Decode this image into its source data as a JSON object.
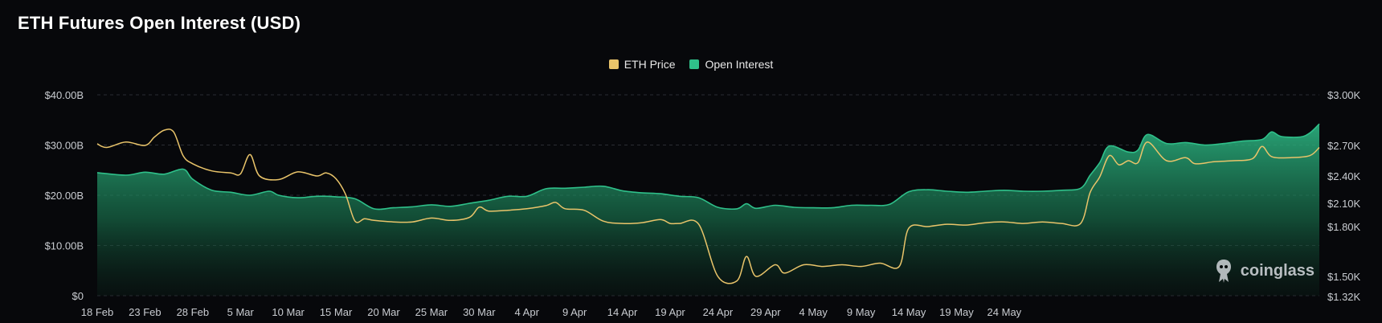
{
  "title": "ETH Futures Open Interest (USD)",
  "legend": {
    "eth_price": "ETH Price",
    "open_interest": "Open Interest"
  },
  "watermark": "coinglass",
  "colors": {
    "background": "#07080b",
    "eth_price": "#e9c46a",
    "open_interest": "#2fc08a",
    "grid": "#2a2d33"
  },
  "chart_data": {
    "type": "area",
    "title": "ETH Futures Open Interest (USD)",
    "x_tick_labels": [
      "18 Feb",
      "23 Feb",
      "28 Feb",
      "5 Mar",
      "10 Mar",
      "15 Mar",
      "20 Mar",
      "25 Mar",
      "30 Mar",
      "4 Apr",
      "9 Apr",
      "14 Apr",
      "19 Apr",
      "24 Apr",
      "29 Apr",
      "4 May",
      "9 May",
      "14 May",
      "19 May",
      "24 May"
    ],
    "left_axis": {
      "ticks": [
        "$0",
        "$10.00B",
        "$20.00B",
        "$30.00B",
        "$40.00B"
      ],
      "tick_values": [
        0,
        10,
        20,
        30,
        40
      ],
      "range": [
        0,
        40
      ]
    },
    "right_axis": {
      "ticks": [
        "$1.32K",
        "$1.50K",
        "$1.80K",
        "$2.10K",
        "$2.40K",
        "$2.70K",
        "$3.00K"
      ],
      "tick_values": [
        1.32,
        1.5,
        1.8,
        2.1,
        2.4,
        2.7,
        3.0
      ],
      "range": [
        1.32,
        3.0
      ]
    },
    "grid": true,
    "legend_position": "top-center",
    "series": [
      {
        "name": "Open Interest",
        "axis": "left",
        "unit": "$B",
        "points": [
          [
            0,
            24.5
          ],
          [
            3,
            24
          ],
          [
            5,
            24.6
          ],
          [
            7,
            24.2
          ],
          [
            9,
            25.2
          ],
          [
            10,
            23.2
          ],
          [
            12,
            21
          ],
          [
            14,
            20.6
          ],
          [
            16,
            20
          ],
          [
            18,
            20.8
          ],
          [
            19,
            20
          ],
          [
            21,
            19.5
          ],
          [
            23,
            19.8
          ],
          [
            25,
            19.7
          ],
          [
            27,
            19.3
          ],
          [
            29,
            17.3
          ],
          [
            31,
            17.5
          ],
          [
            33,
            17.7
          ],
          [
            35,
            18.1
          ],
          [
            37,
            17.8
          ],
          [
            39,
            18.4
          ],
          [
            41,
            19
          ],
          [
            43,
            19.8
          ],
          [
            45,
            19.8
          ],
          [
            47,
            21.3
          ],
          [
            49,
            21.4
          ],
          [
            51,
            21.6
          ],
          [
            53,
            21.8
          ],
          [
            55,
            20.9
          ],
          [
            57,
            20.5
          ],
          [
            59,
            20.3
          ],
          [
            61,
            19.8
          ],
          [
            63,
            19.5
          ],
          [
            65,
            17.6
          ],
          [
            67,
            17.3
          ],
          [
            68,
            18.3
          ],
          [
            69,
            17.4
          ],
          [
            71,
            18
          ],
          [
            73,
            17.6
          ],
          [
            75,
            17.5
          ],
          [
            77,
            17.5
          ],
          [
            79,
            18
          ],
          [
            81,
            18
          ],
          [
            83,
            18.2
          ],
          [
            85,
            20.7
          ],
          [
            87,
            21.1
          ],
          [
            89,
            20.8
          ],
          [
            91,
            20.6
          ],
          [
            93,
            20.8
          ],
          [
            95,
            21
          ],
          [
            97,
            20.8
          ],
          [
            99,
            20.8
          ],
          [
            101,
            21
          ],
          [
            103,
            21.4
          ],
          [
            104,
            24
          ],
          [
            105,
            26.5
          ],
          [
            106,
            29.8
          ],
          [
            108,
            28.6
          ],
          [
            109,
            29
          ],
          [
            110,
            32.1
          ],
          [
            112,
            30.3
          ],
          [
            114,
            30.5
          ],
          [
            116,
            30
          ],
          [
            118,
            30.3
          ],
          [
            120,
            30.8
          ],
          [
            122,
            31.1
          ],
          [
            123,
            32.6
          ],
          [
            124,
            31.7
          ],
          [
            126,
            31.6
          ],
          [
            127,
            32.4
          ],
          [
            128,
            34.2
          ]
        ]
      },
      {
        "name": "ETH Price",
        "axis": "right",
        "unit": "$K",
        "points": [
          [
            0,
            2.71
          ],
          [
            1,
            2.68
          ],
          [
            3,
            2.72
          ],
          [
            5,
            2.7
          ],
          [
            6,
            2.75
          ],
          [
            7,
            2.79
          ],
          [
            8,
            2.78
          ],
          [
            9,
            2.6
          ],
          [
            10,
            2.52
          ],
          [
            12,
            2.45
          ],
          [
            14,
            2.43
          ],
          [
            15,
            2.42
          ],
          [
            16,
            2.61
          ],
          [
            17,
            2.4
          ],
          [
            19,
            2.36
          ],
          [
            21,
            2.44
          ],
          [
            23,
            2.4
          ],
          [
            24,
            2.43
          ],
          [
            25,
            2.37
          ],
          [
            26,
            2.2
          ],
          [
            27,
            1.87
          ],
          [
            28,
            1.9
          ],
          [
            29,
            1.88
          ],
          [
            31,
            1.86
          ],
          [
            33,
            1.86
          ],
          [
            35,
            1.91
          ],
          [
            37,
            1.88
          ],
          [
            39,
            1.92
          ],
          [
            40,
            2.05
          ],
          [
            41,
            2.0
          ],
          [
            43,
            2.01
          ],
          [
            45,
            2.03
          ],
          [
            47,
            2.07
          ],
          [
            48,
            2.11
          ],
          [
            49,
            2.03
          ],
          [
            51,
            2.01
          ],
          [
            53,
            1.87
          ],
          [
            55,
            1.84
          ],
          [
            57,
            1.85
          ],
          [
            59,
            1.89
          ],
          [
            60,
            1.84
          ],
          [
            61,
            1.84
          ],
          [
            63,
            1.83
          ],
          [
            65,
            1.5
          ],
          [
            67,
            1.46
          ],
          [
            68,
            1.62
          ],
          [
            69,
            1.5
          ],
          [
            71,
            1.57
          ],
          [
            72,
            1.52
          ],
          [
            74,
            1.57
          ],
          [
            76,
            1.56
          ],
          [
            78,
            1.57
          ],
          [
            80,
            1.56
          ],
          [
            82,
            1.58
          ],
          [
            84,
            1.56
          ],
          [
            85,
            1.79
          ],
          [
            87,
            1.8
          ],
          [
            89,
            1.83
          ],
          [
            91,
            1.82
          ],
          [
            93,
            1.85
          ],
          [
            95,
            1.86
          ],
          [
            97,
            1.84
          ],
          [
            99,
            1.86
          ],
          [
            101,
            1.84
          ],
          [
            103,
            1.84
          ],
          [
            104,
            2.22
          ],
          [
            105,
            2.39
          ],
          [
            106,
            2.6
          ],
          [
            107,
            2.51
          ],
          [
            108,
            2.55
          ],
          [
            109,
            2.53
          ],
          [
            110,
            2.72
          ],
          [
            112,
            2.55
          ],
          [
            114,
            2.58
          ],
          [
            115,
            2.52
          ],
          [
            117,
            2.54
          ],
          [
            119,
            2.55
          ],
          [
            121,
            2.57
          ],
          [
            122,
            2.69
          ],
          [
            123,
            2.59
          ],
          [
            125,
            2.58
          ],
          [
            127,
            2.6
          ],
          [
            128,
            2.68
          ]
        ]
      }
    ]
  }
}
